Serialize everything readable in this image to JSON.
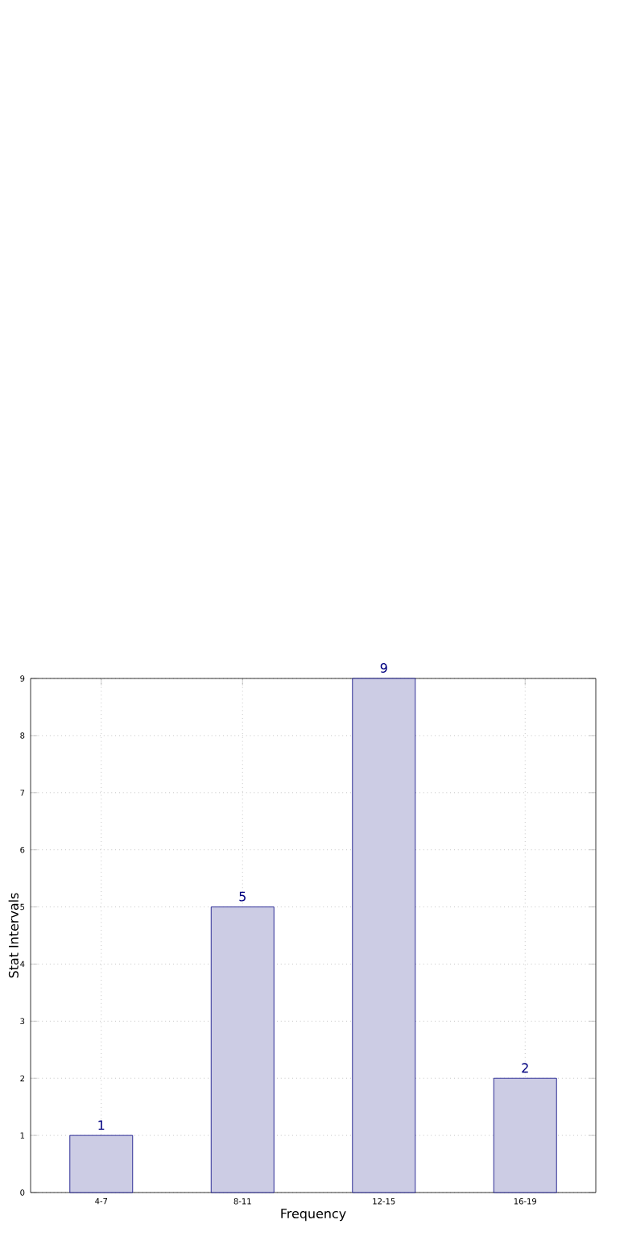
{
  "chart_data": {
    "type": "bar",
    "xlabel": "Frequency",
    "ylabel": "Stat Intervals",
    "categories": [
      "4-7",
      "8-11",
      "12-15",
      "16-19"
    ],
    "values": [
      1,
      5,
      9,
      2
    ],
    "color": "#ccccE4",
    "ylim": [
      0,
      9
    ],
    "yticks": [
      0,
      1,
      2,
      3,
      4,
      5,
      6,
      7,
      8,
      9
    ],
    "grid": true,
    "data_labels": true
  }
}
